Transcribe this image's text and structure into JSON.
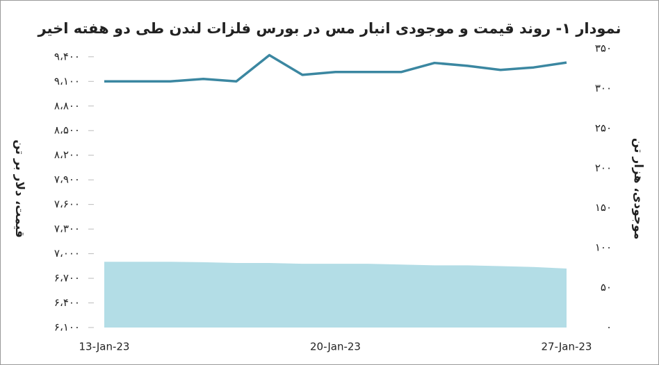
{
  "chart_data": {
    "type": "line",
    "title": "نمودار ۱- روند قیمت و موجودی انبار مس در بورس فلزات لندن طی دو هفته اخیر",
    "ylabel": "قیمت، دلار بر تن",
    "y2label": "موجودی، هزار تن",
    "categories": [
      "13-Jan-23",
      null,
      null,
      null,
      null,
      null,
      null,
      "20-Jan-23",
      null,
      null,
      null,
      null,
      null,
      null,
      "27-Jan-23"
    ],
    "series": [
      {
        "name": "قیمت",
        "type": "line",
        "color": "#3b87a1",
        "values": [
          9100,
          9100,
          9100,
          9130,
          9100,
          9420,
          9180,
          9215,
          9215,
          9215,
          9325,
          9290,
          9240,
          9270,
          9330
        ]
      },
      {
        "name": "موجودی",
        "type": "area",
        "axis": "y2",
        "color": "#b3dde6",
        "values": [
          82.5,
          82.5,
          82.5,
          82,
          81,
          81,
          80,
          80,
          80,
          79,
          78,
          78,
          77,
          76,
          74
        ]
      }
    ],
    "ylim": [
      6100,
      9500
    ],
    "yticks": [
      {
        "value": 6100,
        "label": "۶،۱۰۰"
      },
      {
        "value": 6400,
        "label": "۶،۴۰۰"
      },
      {
        "value": 6700,
        "label": "۶،۷۰۰"
      },
      {
        "value": 7000,
        "label": "۷،۰۰۰"
      },
      {
        "value": 7300,
        "label": "۷،۳۰۰"
      },
      {
        "value": 7600,
        "label": "۷،۶۰۰"
      },
      {
        "value": 7900,
        "label": "۷،۹۰۰"
      },
      {
        "value": 8200,
        "label": "۸،۲۰۰"
      },
      {
        "value": 8500,
        "label": "۸،۵۰۰"
      },
      {
        "value": 8800,
        "label": "۸،۸۰۰"
      },
      {
        "value": 9100,
        "label": "۹،۱۰۰"
      },
      {
        "value": 9400,
        "label": "۹،۴۰۰"
      }
    ],
    "y2lim": [
      0,
      350
    ],
    "y2ticks": [
      {
        "value": 0,
        "label": "۰"
      },
      {
        "value": 50,
        "label": "۵۰"
      },
      {
        "value": 100,
        "label": "۱۰۰"
      },
      {
        "value": 150,
        "label": "۱۵۰"
      },
      {
        "value": 200,
        "label": "۲۰۰"
      },
      {
        "value": 250,
        "label": "۲۵۰"
      },
      {
        "value": 300,
        "label": "۳۰۰"
      },
      {
        "value": 350,
        "label": "۳۵۰"
      }
    ],
    "grid": false
  }
}
